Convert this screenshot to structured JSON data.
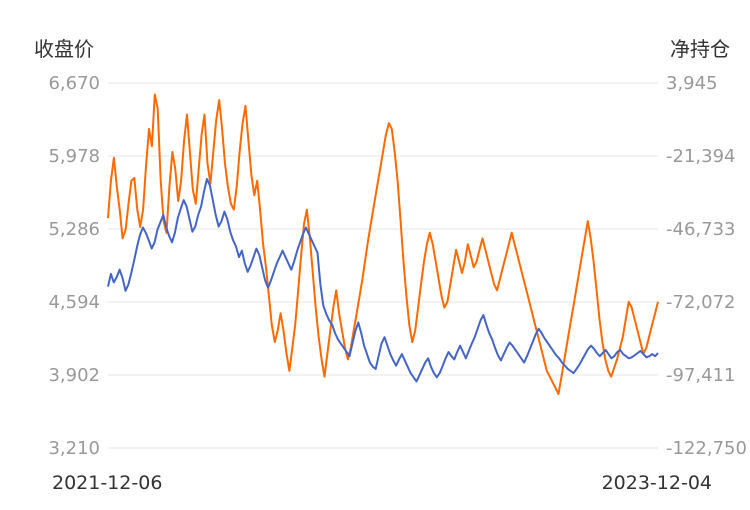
{
  "chart_data": {
    "type": "line",
    "left_axis_title": "收盘价",
    "right_axis_title": "净持仓",
    "left_ticks": [
      "6,670",
      "5,978",
      "5,286",
      "4,594",
      "3,902",
      "3,210"
    ],
    "right_ticks": [
      "3,945",
      "-21,394",
      "-46,733",
      "-72,072",
      "-97,411",
      "-122,750"
    ],
    "left_range": [
      3210,
      6670
    ],
    "right_range": [
      -122750,
      3945
    ],
    "x_start_label": "2021-12-06",
    "x_end_label": "2023-12-04",
    "grid": true,
    "colors": {
      "close": "#4565c6",
      "net": "#ff6a00",
      "grid": "#e6e6e6"
    },
    "series": [
      {
        "key": "close",
        "axis": "left",
        "values": [
          4740,
          4860,
          4780,
          4830,
          4900,
          4820,
          4700,
          4760,
          4870,
          4990,
          5120,
          5230,
          5300,
          5250,
          5180,
          5100,
          5160,
          5280,
          5350,
          5420,
          5300,
          5220,
          5160,
          5250,
          5390,
          5480,
          5560,
          5500,
          5380,
          5260,
          5310,
          5420,
          5500,
          5640,
          5760,
          5700,
          5560,
          5420,
          5310,
          5360,
          5450,
          5380,
          5260,
          5180,
          5120,
          5020,
          5080,
          4960,
          4880,
          4940,
          5020,
          5100,
          5040,
          4920,
          4800,
          4730,
          4800,
          4880,
          4960,
          5020,
          5080,
          5020,
          4960,
          4900,
          4980,
          5080,
          5160,
          5240,
          5300,
          5240,
          5180,
          5120,
          5060,
          4760,
          4560,
          4480,
          4420,
          4380,
          4300,
          4240,
          4200,
          4160,
          4120,
          4080,
          4200,
          4320,
          4400,
          4300,
          4180,
          4100,
          4020,
          3980,
          3960,
          4080,
          4200,
          4260,
          4180,
          4100,
          4040,
          3990,
          4050,
          4100,
          4040,
          3980,
          3920,
          3880,
          3840,
          3900,
          3960,
          4020,
          4060,
          3980,
          3920,
          3880,
          3920,
          3990,
          4060,
          4120,
          4080,
          4050,
          4120,
          4180,
          4120,
          4060,
          4130,
          4200,
          4260,
          4340,
          4420,
          4470,
          4380,
          4300,
          4240,
          4160,
          4090,
          4040,
          4100,
          4160,
          4210,
          4180,
          4140,
          4100,
          4060,
          4020,
          4080,
          4150,
          4220,
          4290,
          4340,
          4300,
          4250,
          4210,
          4170,
          4130,
          4090,
          4060,
          4020,
          3990,
          3960,
          3940,
          3920,
          3960,
          4000,
          4050,
          4100,
          4150,
          4180,
          4150,
          4110,
          4080,
          4110,
          4140,
          4100,
          4060,
          4080,
          4120,
          4140,
          4100,
          4080,
          4060,
          4070,
          4090,
          4110,
          4130,
          4100,
          4070,
          4080,
          4100,
          4080,
          4110
        ]
      },
      {
        "key": "net",
        "axis": "right",
        "values": [
          -43000,
          -30000,
          -22000,
          -32000,
          -40000,
          -50000,
          -47000,
          -38000,
          -30000,
          -29000,
          -40000,
          -46000,
          -40000,
          -25000,
          -12000,
          -18000,
          0,
          -5000,
          -30000,
          -44000,
          -48000,
          -32000,
          -20000,
          -26000,
          -37000,
          -30000,
          -16000,
          -7000,
          -20000,
          -33000,
          -38000,
          -26000,
          -14000,
          -7000,
          -24000,
          -31000,
          -20000,
          -9000,
          -2000,
          -12000,
          -24000,
          -32000,
          -38000,
          -40000,
          -32000,
          -20000,
          -10000,
          -4000,
          -16000,
          -28000,
          -35000,
          -30000,
          -40000,
          -52000,
          -60000,
          -70000,
          -80000,
          -86000,
          -82000,
          -76000,
          -82000,
          -90000,
          -96000,
          -88000,
          -80000,
          -68000,
          -56000,
          -45000,
          -40000,
          -50000,
          -62000,
          -74000,
          -84000,
          -92000,
          -98000,
          -90000,
          -82000,
          -74000,
          -68000,
          -76000,
          -82000,
          -88000,
          -92000,
          -88000,
          -82000,
          -76000,
          -70000,
          -64000,
          -57000,
          -50000,
          -44000,
          -38000,
          -32000,
          -26000,
          -20000,
          -14000,
          -10000,
          -12000,
          -20000,
          -30000,
          -44000,
          -58000,
          -70000,
          -80000,
          -86000,
          -82000,
          -74000,
          -66000,
          -58000,
          -52000,
          -48000,
          -52000,
          -58000,
          -64000,
          -70000,
          -74000,
          -72000,
          -66000,
          -60000,
          -54000,
          -58000,
          -62000,
          -58000,
          -52000,
          -56000,
          -60000,
          -58000,
          -54000,
          -50000,
          -54000,
          -58000,
          -62000,
          -66000,
          -68000,
          -64000,
          -60000,
          -56000,
          -52000,
          -48000,
          -52000,
          -56000,
          -60000,
          -64000,
          -68000,
          -72000,
          -76000,
          -80000,
          -84000,
          -88000,
          -92000,
          -96000,
          -98000,
          -100000,
          -102000,
          -104000,
          -98000,
          -92000,
          -86000,
          -80000,
          -74000,
          -68000,
          -62000,
          -56000,
          -50000,
          -44000,
          -50000,
          -58000,
          -68000,
          -78000,
          -86000,
          -92000,
          -96000,
          -98000,
          -95000,
          -92000,
          -88000,
          -84000,
          -78000,
          -72000,
          -74000,
          -78000,
          -82000,
          -86000,
          -90000,
          -88000,
          -84000,
          -80000,
          -76000,
          -72000
        ]
      }
    ]
  }
}
